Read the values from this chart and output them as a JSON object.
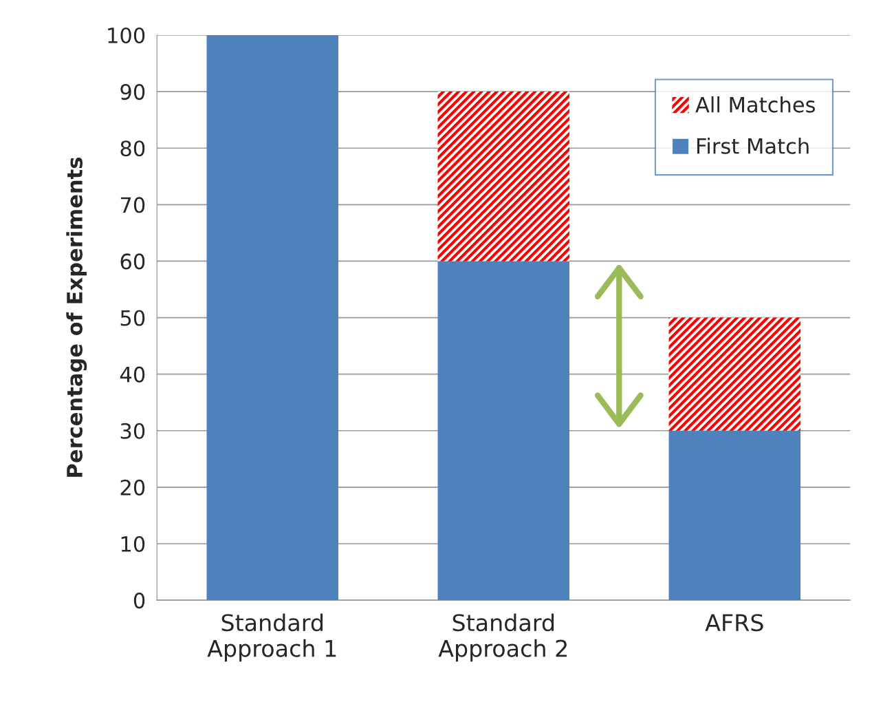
{
  "chart_data": {
    "type": "bar",
    "stacked": true,
    "ylabel": "Percentage of Experiments",
    "categories": [
      "Standard\nApproach 1",
      "Standard\nApproach 2",
      "AFRS"
    ],
    "series": [
      {
        "name": "First Match",
        "color": "#4f81bd",
        "values": [
          100,
          60,
          30
        ]
      },
      {
        "name": "All Matches",
        "color": "#ff0000",
        "values": [
          null,
          30,
          20
        ]
      }
    ],
    "ylim": [
      0,
      100
    ],
    "yticks": [
      0,
      10,
      20,
      30,
      40,
      50,
      60,
      70,
      80,
      90,
      100
    ],
    "grid": "y",
    "legend": "top right"
  }
}
